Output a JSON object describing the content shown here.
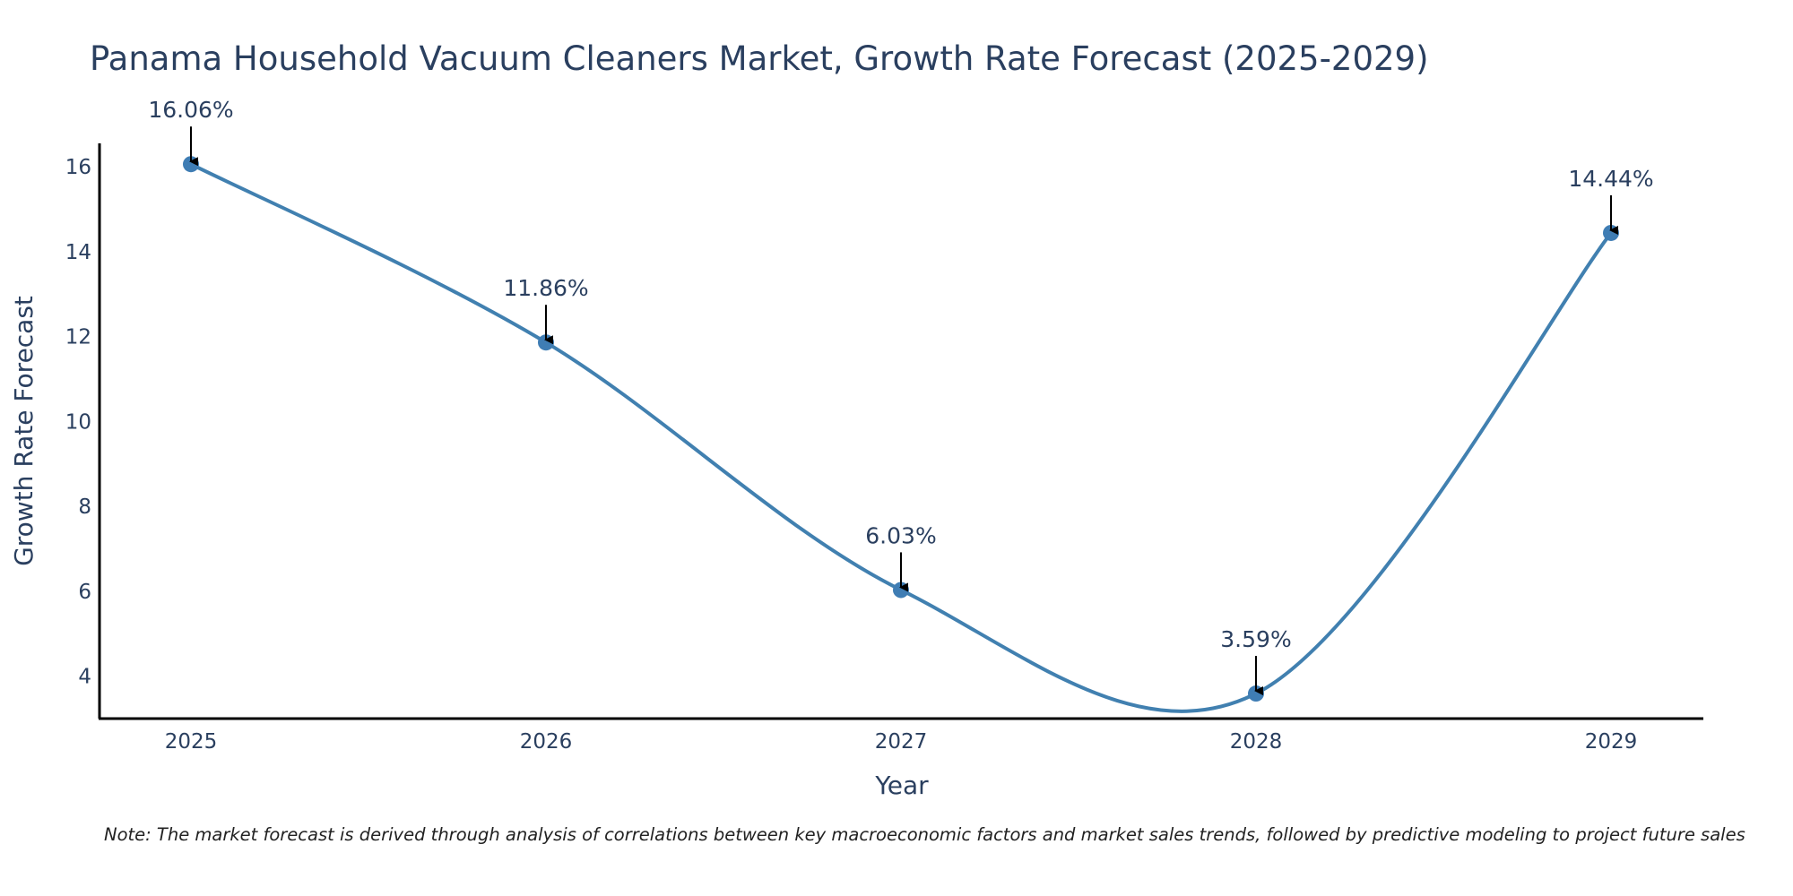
{
  "chart_data": {
    "type": "line",
    "title": "Panama Household Vacuum Cleaners Market, Growth Rate Forecast (2025-2029)",
    "xlabel": "Year",
    "ylabel": "Growth Rate Forecast",
    "categories": [
      "2025",
      "2026",
      "2027",
      "2028",
      "2029"
    ],
    "values": [
      16.06,
      11.86,
      6.03,
      3.59,
      14.44
    ],
    "data_labels": [
      "16.06%",
      "11.86%",
      "6.03%",
      "3.59%",
      "14.44%"
    ],
    "yticks": [
      4,
      6,
      8,
      10,
      12,
      14,
      16
    ],
    "ylim": [
      3.0,
      16.55
    ],
    "grid": false,
    "line_color": "#4180b0",
    "marker_color": "#3f7db4"
  },
  "note": "Note: The market forecast is derived through analysis of correlations between key macroeconomic factors and market sales trends, followed by predictive modeling to project future sales"
}
